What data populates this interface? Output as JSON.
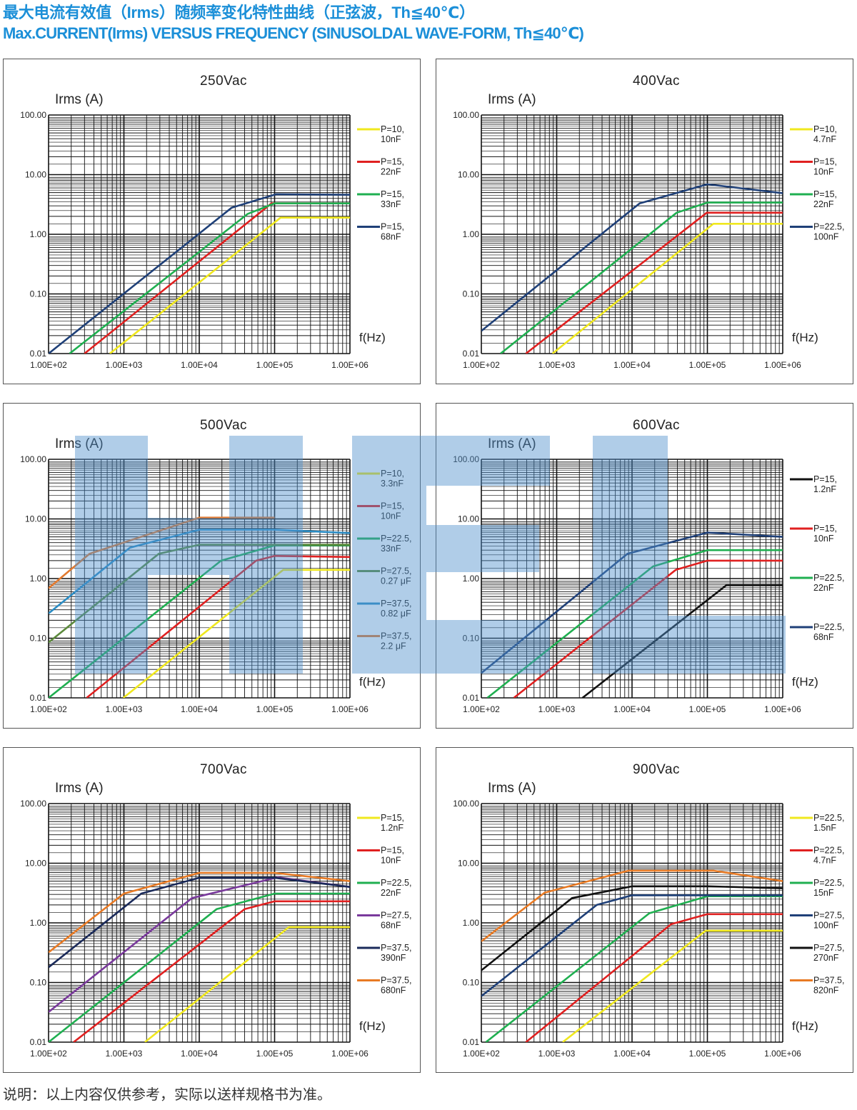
{
  "header": {
    "title_cn": "最大电流有效值（Irms）随频率变化特性曲线（正弦波，Th≦40℃）",
    "title_en": "Max.CURRENT(Irms) VERSUS FREQUENCY (SINUSOLDAL WAVE-FORM, Th≦40℃)"
  },
  "footer": "说明：以上内容仅供参考，实际以送样规格书为准。",
  "chart_data": [
    {
      "type": "line",
      "title": "250Vac",
      "ylabel": "Irms (A)",
      "xlabel": "f(Hz)",
      "xscale": "log",
      "yscale": "log",
      "xlim": [
        100,
        1000000
      ],
      "ylim": [
        0.01,
        100
      ],
      "grid": true,
      "legend": "right",
      "xticks": [
        "1.00E+02",
        "1.00E+03",
        "1.00E+04",
        "1.00E+05",
        "1.00E+06"
      ],
      "yticks": [
        "100.00",
        "10.00",
        "1.00",
        "0.10",
        "0.01"
      ],
      "series": [
        {
          "name": [
            "P=10,",
            "10nF"
          ],
          "color": "#f0e81e",
          "points": [
            [
              650,
              0.01
            ],
            [
              120000,
              1.9
            ],
            [
              1000000,
              1.9
            ]
          ]
        },
        {
          "name": [
            "P=15,",
            "22nF"
          ],
          "color": "#e02020",
          "points": [
            [
              300,
              0.01
            ],
            [
              91000,
              3.3
            ],
            [
              1000000,
              3.3
            ]
          ]
        },
        {
          "name": [
            "P=15,",
            "33nF"
          ],
          "color": "#1faf50",
          "points": [
            [
              190,
              0.01
            ],
            [
              44000,
              2.2
            ],
            [
              100000,
              3.3
            ],
            [
              1000000,
              3.3
            ]
          ]
        },
        {
          "name": [
            "P=15,",
            "68nF"
          ],
          "color": "#1f4078",
          "points": [
            [
              100,
              0.01
            ],
            [
              27000,
              2.8
            ],
            [
              105000,
              4.7
            ],
            [
              1000000,
              4.6
            ]
          ]
        }
      ]
    },
    {
      "type": "line",
      "title": "400Vac",
      "ylabel": "Irms (A)",
      "xlabel": "f(Hz)",
      "xscale": "log",
      "yscale": "log",
      "xlim": [
        100,
        1000000
      ],
      "ylim": [
        0.01,
        100
      ],
      "grid": true,
      "legend": "right",
      "xticks": [
        "1.00E+02",
        "1.00E+03",
        "1.00E+04",
        "1.00E+05",
        "1.00E+06"
      ],
      "yticks": [
        "100.00",
        "10.00",
        "1.00",
        "0.10",
        "0.01"
      ],
      "series": [
        {
          "name": [
            "P=10,",
            "4.7nF"
          ],
          "color": "#f0e81e",
          "points": [
            [
              880,
              0.01
            ],
            [
              120000,
              1.5
            ],
            [
              1000000,
              1.5
            ]
          ]
        },
        {
          "name": [
            "P=15,",
            "10nF"
          ],
          "color": "#e02020",
          "points": [
            [
              390,
              0.01
            ],
            [
              98000,
              2.3
            ],
            [
              1000000,
              2.3
            ]
          ]
        },
        {
          "name": [
            "P=15,",
            "22nF"
          ],
          "color": "#1faf50",
          "points": [
            [
              180,
              0.01
            ],
            [
              39000,
              2.3
            ],
            [
              100000,
              3.4
            ],
            [
              1000000,
              3.4
            ]
          ]
        },
        {
          "name": [
            "P=22.5,",
            "100nF"
          ],
          "color": "#1f4078",
          "points": [
            [
              100,
              0.024
            ],
            [
              12600,
              3.3
            ],
            [
              100000,
              6.9
            ],
            [
              1000000,
              4.9
            ]
          ]
        }
      ]
    },
    {
      "type": "line",
      "title": "500Vac",
      "ylabel": "Irms (A)",
      "xlabel": "f(Hz)",
      "xscale": "log",
      "yscale": "log",
      "xlim": [
        100,
        1000000
      ],
      "ylim": [
        0.01,
        100
      ],
      "grid": true,
      "legend": "right",
      "xticks": [
        "1.00E+02",
        "1.00E+03",
        "1.00E+04",
        "1.00E+05",
        "1.00E+06"
      ],
      "yticks": [
        "100.00",
        "10.00",
        "1.00",
        "0.10",
        "0.01"
      ],
      "series": [
        {
          "name": [
            "P=10,",
            "3.3nF"
          ],
          "color": "#f0e81e",
          "points": [
            [
              980,
              0.01
            ],
            [
              130000,
              1.4
            ],
            [
              1000000,
              1.4
            ]
          ]
        },
        {
          "name": [
            "P=15,",
            "10nF"
          ],
          "color": "#e02020",
          "points": [
            [
              320,
              0.01
            ],
            [
              57000,
              2.0
            ],
            [
              100000,
              2.4
            ],
            [
              1000000,
              2.3
            ]
          ]
        },
        {
          "name": [
            "P=22.5,",
            "33nF"
          ],
          "color": "#1faf50",
          "points": [
            [
              100,
              0.01
            ],
            [
              19500,
              2.0
            ],
            [
              100000,
              3.6
            ],
            [
              1000000,
              3.6
            ]
          ]
        },
        {
          "name": [
            "P=27.5,",
            "0.27 μF"
          ],
          "color": "#5c8a3c",
          "points": [
            [
              100,
              0.085
            ],
            [
              2900,
              2.6
            ],
            [
              10000,
              3.7
            ],
            [
              1000000,
              3.7
            ]
          ]
        },
        {
          "name": [
            "P=37.5,",
            "0.82 μF"
          ],
          "color": "#2a8cc4",
          "points": [
            [
              100,
              0.26
            ],
            [
              1200,
              3.3
            ],
            [
              10000,
              6.6
            ],
            [
              100000,
              6.6
            ],
            [
              1000000,
              5.8
            ]
          ]
        },
        {
          "name": [
            "P=37.5,",
            "2.2 μF"
          ],
          "color": "#e27a30",
          "points": [
            [
              100,
              0.69
            ],
            [
              350,
              2.6
            ],
            [
              10000,
              10.5
            ],
            [
              100000,
              10.5
            ]
          ]
        }
      ]
    },
    {
      "type": "line",
      "title": "600Vac",
      "ylabel": "Irms (A)",
      "xlabel": "f(Hz)",
      "xscale": "log",
      "yscale": "log",
      "xlim": [
        100,
        1000000
      ],
      "ylim": [
        0.01,
        100
      ],
      "grid": true,
      "legend": "right",
      "xticks": [
        "1.00E+02",
        "1.00E+03",
        "1.00E+04",
        "1.00E+05",
        "1.00E+06"
      ],
      "yticks": [
        "100.00",
        "10.00",
        "1.00",
        "0.10",
        "0.01"
      ],
      "series": [
        {
          "name": [
            "P=15,",
            "1.2nF"
          ],
          "color": "#111111",
          "points": [
            [
              2200,
              0.01
            ],
            [
              180000,
              0.78
            ],
            [
              1000000,
              0.78
            ]
          ]
        },
        {
          "name": [
            "P=15,",
            "10nF"
          ],
          "color": "#e02020",
          "points": [
            [
              270,
              0.01
            ],
            [
              38000,
              1.4
            ],
            [
              100000,
              2.0
            ],
            [
              1000000,
              2.0
            ]
          ]
        },
        {
          "name": [
            "P=22.5,",
            "22nF"
          ],
          "color": "#1faf50",
          "points": [
            [
              120,
              0.01
            ],
            [
              19000,
              1.6
            ],
            [
              100000,
              3.0
            ],
            [
              1000000,
              3.0
            ]
          ]
        },
        {
          "name": [
            "P=22.5,",
            "68nF"
          ],
          "color": "#1f4078",
          "points": [
            [
              100,
              0.026
            ],
            [
              8700,
              2.6
            ],
            [
              100000,
              5.9
            ],
            [
              1000000,
              5.0
            ]
          ]
        }
      ]
    },
    {
      "type": "line",
      "title": "700Vac",
      "ylabel": "Irms (A)",
      "xlabel": "f(Hz)",
      "xscale": "log",
      "yscale": "log",
      "xlim": [
        100,
        1000000
      ],
      "ylim": [
        0.01,
        100
      ],
      "grid": true,
      "legend": "right",
      "xticks": [
        "1.00E+02",
        "1.00E+03",
        "1.00E+04",
        "1.00E+05",
        "1.00E+06"
      ],
      "yticks": [
        "100.00",
        "10.00",
        "1.00",
        "0.10",
        "0.01"
      ],
      "series": [
        {
          "name": [
            "P=15,",
            "1.2nF"
          ],
          "color": "#f0e81e",
          "points": [
            [
              1900,
              0.01
            ],
            [
              155000,
              0.85
            ],
            [
              1000000,
              0.85
            ]
          ]
        },
        {
          "name": [
            "P=15,",
            "10nF"
          ],
          "color": "#e02020",
          "points": [
            [
              215,
              0.01
            ],
            [
              40000,
              1.7
            ],
            [
              100000,
              2.3
            ],
            [
              1000000,
              2.3
            ]
          ]
        },
        {
          "name": [
            "P=22.5,",
            "22nF"
          ],
          "color": "#1faf50",
          "points": [
            [
              100,
              0.01
            ],
            [
              17000,
              1.7
            ],
            [
              100000,
              3.1
            ],
            [
              1000000,
              3.1
            ]
          ]
        },
        {
          "name": [
            "P=27.5,",
            "68nF"
          ],
          "color": "#7a3a9c",
          "points": [
            [
              100,
              0.032
            ],
            [
              8000,
              2.6
            ],
            [
              110000,
              5.8
            ],
            [
              1000000,
              4.0
            ]
          ]
        },
        {
          "name": [
            "P=37.5,",
            "390nF"
          ],
          "color": "#1a2a5a",
          "points": [
            [
              100,
              0.18
            ],
            [
              1700,
              3.1
            ],
            [
              10000,
              5.7
            ],
            [
              100000,
              5.7
            ],
            [
              1000000,
              4.0
            ]
          ]
        },
        {
          "name": [
            "P=37.5,",
            "680nF"
          ],
          "color": "#e87a24",
          "points": [
            [
              100,
              0.32
            ],
            [
              1000,
              3.1
            ],
            [
              10000,
              6.9
            ],
            [
              100000,
              6.9
            ],
            [
              1000000,
              5.0
            ]
          ]
        }
      ]
    },
    {
      "type": "line",
      "title": "900Vac",
      "ylabel": "Irms (A)",
      "xlabel": "f(Hz)",
      "xscale": "log",
      "yscale": "log",
      "xlim": [
        100,
        1000000
      ],
      "ylim": [
        0.01,
        100
      ],
      "grid": true,
      "legend": "right",
      "xticks": [
        "1.00E+02",
        "1.00E+03",
        "1.00E+04",
        "1.00E+05",
        "1.00E+06"
      ],
      "yticks": [
        "100.00",
        "10.00",
        "1.00",
        "0.10",
        "0.01"
      ],
      "series": [
        {
          "name": [
            "P=22.5,",
            "1.5nF"
          ],
          "color": "#f0e81e",
          "points": [
            [
              1200,
              0.01
            ],
            [
              95000,
              0.74
            ],
            [
              1000000,
              0.74
            ]
          ]
        },
        {
          "name": [
            "P=22.5,",
            "4.7nF"
          ],
          "color": "#e02020",
          "points": [
            [
              390,
              0.01
            ],
            [
              33000,
              0.95
            ],
            [
              100000,
              1.4
            ],
            [
              1000000,
              1.4
            ]
          ]
        },
        {
          "name": [
            "P=22.5,",
            "15nF"
          ],
          "color": "#1faf50",
          "points": [
            [
              115,
              0.01
            ],
            [
              17000,
              1.45
            ],
            [
              100000,
              2.8
            ],
            [
              1000000,
              2.8
            ]
          ]
        },
        {
          "name": [
            "P=27.5,",
            "100nF"
          ],
          "color": "#1f4078",
          "points": [
            [
              100,
              0.059
            ],
            [
              3400,
              2.0
            ],
            [
              10000,
              2.9
            ],
            [
              1000000,
              2.9
            ]
          ]
        },
        {
          "name": [
            "P=27.5,",
            "270nF"
          ],
          "color": "#111111",
          "points": [
            [
              100,
              0.16
            ],
            [
              1600,
              2.6
            ],
            [
              10000,
              4.1
            ],
            [
              100000,
              4.1
            ],
            [
              1000000,
              3.8
            ]
          ]
        },
        {
          "name": [
            "P=37.5,",
            "820nF"
          ],
          "color": "#e87a24",
          "points": [
            [
              100,
              0.49
            ],
            [
              690,
              3.2
            ],
            [
              9000,
              7.5
            ],
            [
              120000,
              7.5
            ],
            [
              1000000,
              5.0
            ]
          ]
        }
      ]
    }
  ]
}
